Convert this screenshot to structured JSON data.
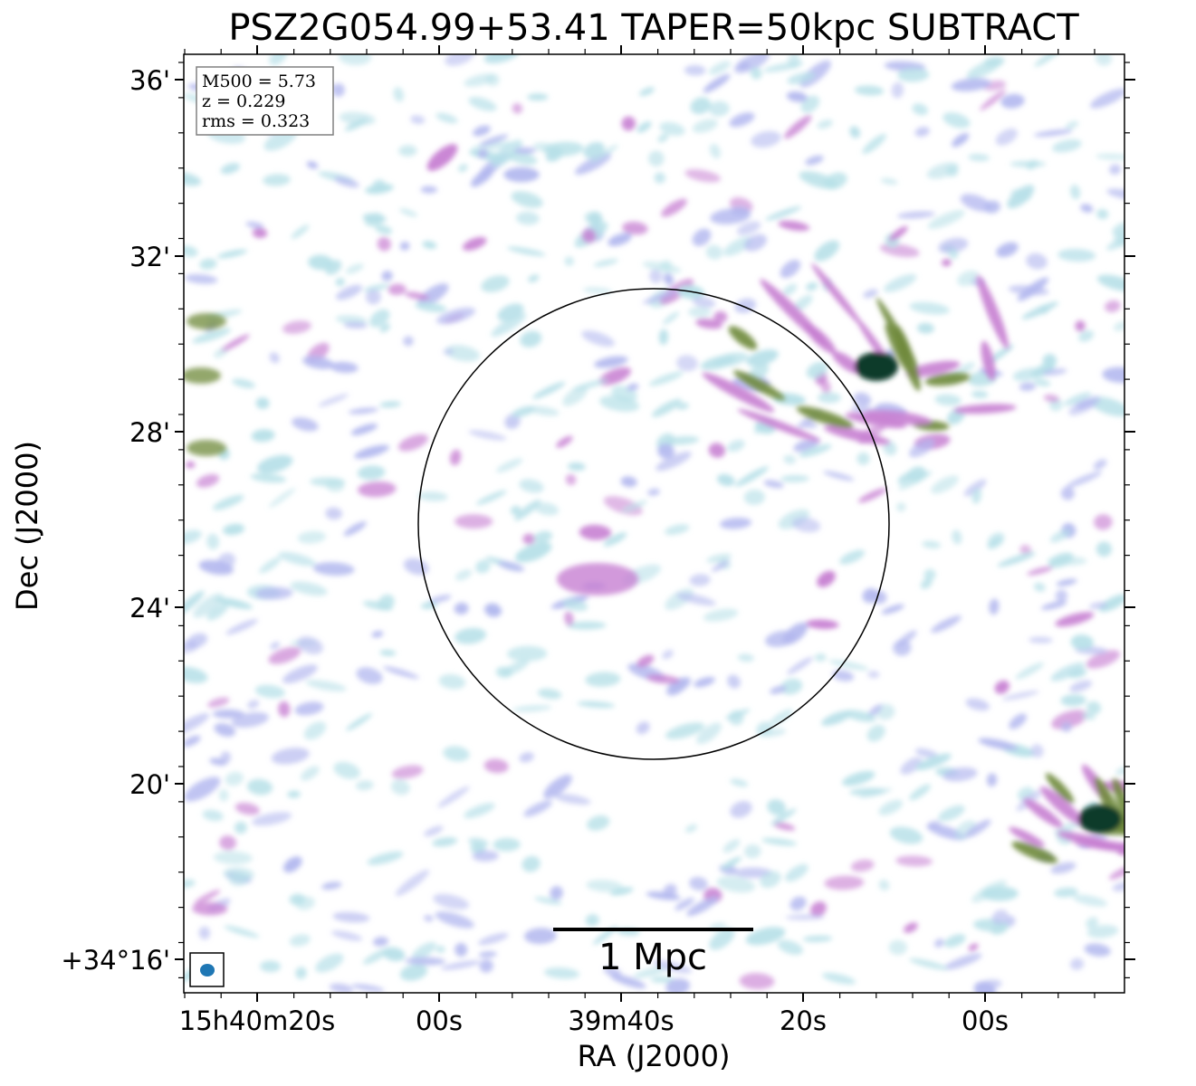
{
  "figure": {
    "title": "PSZ2G054.99+53.41 TAPER=50kpc SUBTRACT",
    "info": {
      "m500": "M500 = 5.73",
      "z": "z = 0.229",
      "rms": "rms = 0.323"
    },
    "scale_bar_label": "1 Mpc",
    "x_axis": {
      "label": "RA (J2000)",
      "tick_labels": [
        "15h40m20s",
        "00s",
        "39m40s",
        "20s",
        "00s"
      ]
    },
    "y_axis": {
      "label": "Dec (J2000)",
      "tick_labels": [
        "36'",
        "32'",
        "28'",
        "24'",
        "20'",
        "+34°16'"
      ]
    },
    "colors": {
      "faint_emission": "#b7e0e8",
      "low_emission": "#b3b8ef",
      "mid_emission": "#c77fd2",
      "high_emission": "#6f8a3a",
      "peak_emission": "#0c3b2c",
      "beam": "#1f77b4"
    }
  }
}
